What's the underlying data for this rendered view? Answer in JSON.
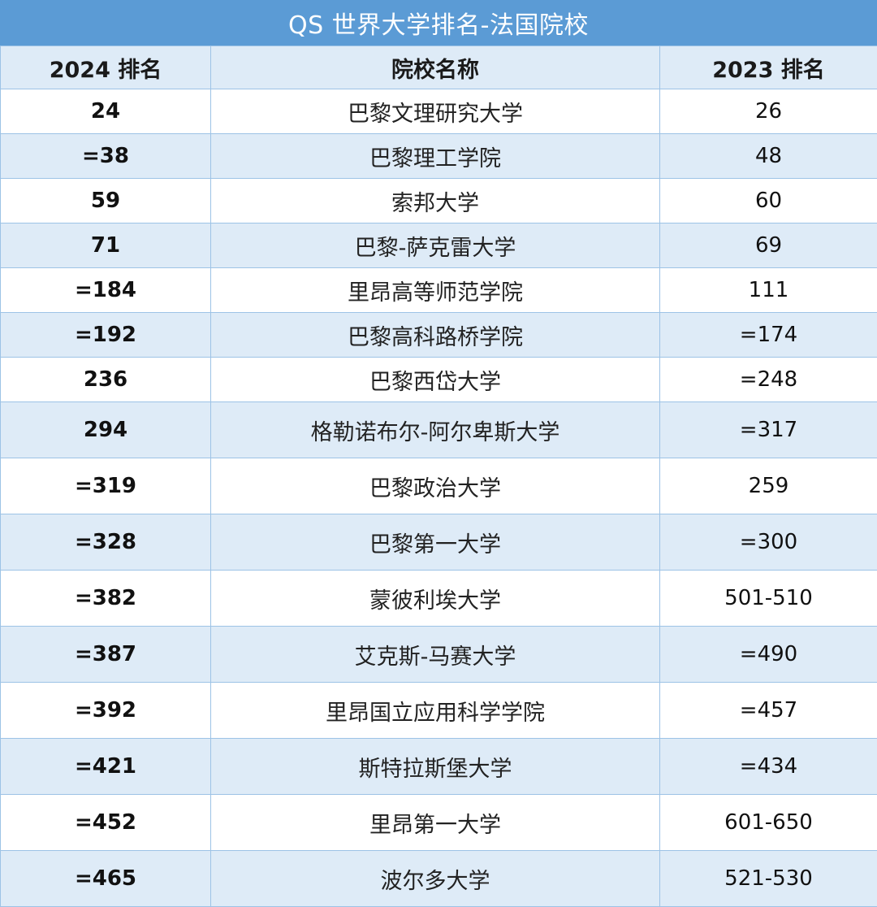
{
  "title": "QS 世界大学排名-法国院校",
  "colors": {
    "title_bg": "#5b9bd5",
    "stripe": "#deebf7",
    "border": "#9dc3e6"
  },
  "columns": [
    "2024 排名",
    "院校名称",
    "2023 排名"
  ],
  "rows": [
    {
      "rank_2024": "24",
      "name": "巴黎文理研究大学",
      "rank_2023": "26"
    },
    {
      "rank_2024": "=38",
      "name": "巴黎理工学院",
      "rank_2023": "48"
    },
    {
      "rank_2024": "59",
      "name": "索邦大学",
      "rank_2023": "60"
    },
    {
      "rank_2024": "71",
      "name": "巴黎-萨克雷大学",
      "rank_2023": "69"
    },
    {
      "rank_2024": "=184",
      "name": "里昂高等师范学院",
      "rank_2023": "111"
    },
    {
      "rank_2024": "=192",
      "name": "巴黎高科路桥学院",
      "rank_2023": "=174"
    },
    {
      "rank_2024": "236",
      "name": "巴黎西岱大学",
      "rank_2023": "=248"
    },
    {
      "rank_2024": "294",
      "name": "格勒诺布尔-阿尔卑斯大学",
      "rank_2023": "=317"
    },
    {
      "rank_2024": "=319",
      "name": "巴黎政治大学",
      "rank_2023": "259"
    },
    {
      "rank_2024": "=328",
      "name": "巴黎第一大学",
      "rank_2023": "=300"
    },
    {
      "rank_2024": "=382",
      "name": "蒙彼利埃大学",
      "rank_2023": "501-510"
    },
    {
      "rank_2024": "=387",
      "name": "艾克斯-马赛大学",
      "rank_2023": "=490"
    },
    {
      "rank_2024": "=392",
      "name": "里昂国立应用科学学院",
      "rank_2023": "=457"
    },
    {
      "rank_2024": "=421",
      "name": "斯特拉斯堡大学",
      "rank_2023": "=434"
    },
    {
      "rank_2024": "=452",
      "name": "里昂第一大学",
      "rank_2023": "601-650"
    },
    {
      "rank_2024": "=465",
      "name": "波尔多大学",
      "rank_2023": "521-530"
    }
  ]
}
